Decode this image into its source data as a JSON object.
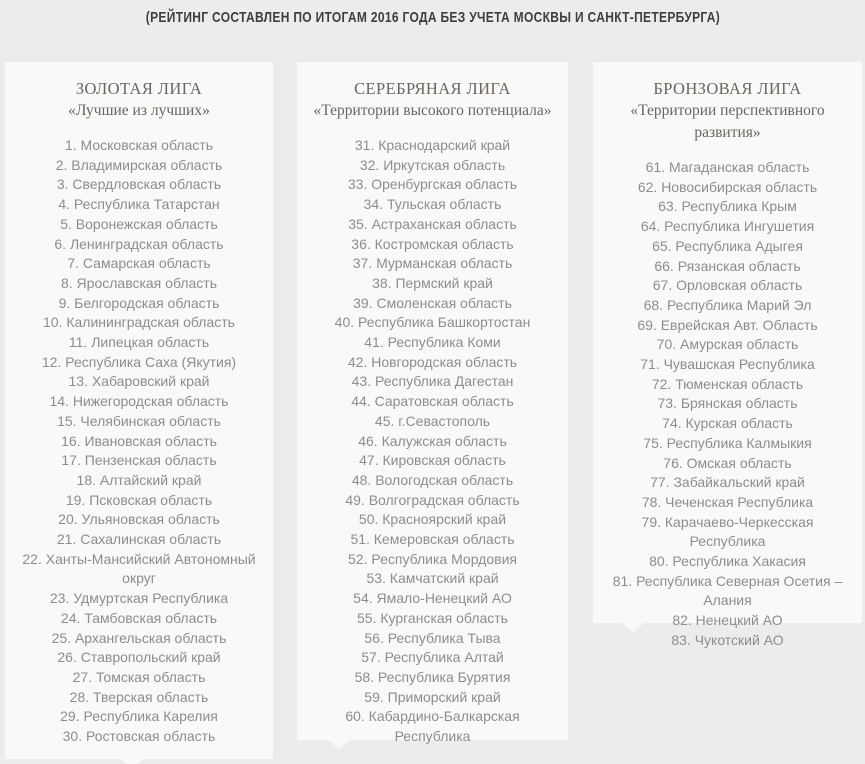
{
  "header": {
    "note": "(РЕЙТИНГ СОСТАВЛЕН ПО ИТОГАМ 2016 ГОДА БЕЗ УЧЕТА МОСКВЫ И САНКТ-ПЕТЕРБУРГА)"
  },
  "colors": {
    "page_background": "#ececec",
    "card_background": "#f9f9f9",
    "header_text": "#3e3e3e",
    "league_title_text": "#6b655e",
    "item_text": "#8d8d8d"
  },
  "leagues": [
    {
      "id": "gold",
      "title": "ЗОЛОТАЯ ЛИГА",
      "subtitle": "«Лучшие из лучших»",
      "items": [
        {
          "rank": 1,
          "name": "Московская область"
        },
        {
          "rank": 2,
          "name": "Владимирская область"
        },
        {
          "rank": 3,
          "name": "Свердловская область"
        },
        {
          "rank": 4,
          "name": "Республика Татарстан"
        },
        {
          "rank": 5,
          "name": "Воронежская область"
        },
        {
          "rank": 6,
          "name": "Ленинградская область"
        },
        {
          "rank": 7,
          "name": "Самарская область"
        },
        {
          "rank": 8,
          "name": "Ярославская область"
        },
        {
          "rank": 9,
          "name": "Белгородская область"
        },
        {
          "rank": 10,
          "name": "Калининградская область"
        },
        {
          "rank": 11,
          "name": "Липецкая область"
        },
        {
          "rank": 12,
          "name": "Республика Саха (Якутия)"
        },
        {
          "rank": 13,
          "name": "Хабаровский край"
        },
        {
          "rank": 14,
          "name": "Нижегородская область"
        },
        {
          "rank": 15,
          "name": "Челябинская область"
        },
        {
          "rank": 16,
          "name": "Ивановская область"
        },
        {
          "rank": 17,
          "name": "Пензенская область"
        },
        {
          "rank": 18,
          "name": "Алтайский край"
        },
        {
          "rank": 19,
          "name": "Псковская область"
        },
        {
          "rank": 20,
          "name": "Ульяновская область"
        },
        {
          "rank": 21,
          "name": "Сахалинская область"
        },
        {
          "rank": 22,
          "name": "Ханты-Мансийский Автономный округ"
        },
        {
          "rank": 23,
          "name": "Удмуртская Республика"
        },
        {
          "rank": 24,
          "name": "Тамбовская область"
        },
        {
          "rank": 25,
          "name": "Архангельская область"
        },
        {
          "rank": 26,
          "name": "Ставропольский край"
        },
        {
          "rank": 27,
          "name": "Томская область"
        },
        {
          "rank": 28,
          "name": "Тверская область"
        },
        {
          "rank": 29,
          "name": "Республика Карелия"
        },
        {
          "rank": 30,
          "name": "Ростовская область"
        }
      ]
    },
    {
      "id": "silver",
      "title": "СЕРЕБРЯНАЯ ЛИГА",
      "subtitle": "«Территории высокого потенциала»",
      "items": [
        {
          "rank": 31,
          "name": "Краснодарский край"
        },
        {
          "rank": 32,
          "name": "Иркутская область"
        },
        {
          "rank": 33,
          "name": "Оренбургская область"
        },
        {
          "rank": 34,
          "name": "Тульская область"
        },
        {
          "rank": 35,
          "name": "Астраханская область"
        },
        {
          "rank": 36,
          "name": "Костромская область"
        },
        {
          "rank": 37,
          "name": "Мурманская область"
        },
        {
          "rank": 38,
          "name": "Пермский край"
        },
        {
          "rank": 39,
          "name": "Смоленская область"
        },
        {
          "rank": 40,
          "name": "Республика Башкортостан"
        },
        {
          "rank": 41,
          "name": "Республика Коми"
        },
        {
          "rank": 42,
          "name": "Новгородская область"
        },
        {
          "rank": 43,
          "name": "Республика Дагестан"
        },
        {
          "rank": 44,
          "name": "Саратовская область"
        },
        {
          "rank": 45,
          "name": "г.Севастополь"
        },
        {
          "rank": 46,
          "name": "Калужская область"
        },
        {
          "rank": 47,
          "name": "Кировская область"
        },
        {
          "rank": 48,
          "name": "Вологодская область"
        },
        {
          "rank": 49,
          "name": "Волгоградская область"
        },
        {
          "rank": 50,
          "name": "Красноярский край"
        },
        {
          "rank": 51,
          "name": "Кемеровская область"
        },
        {
          "rank": 52,
          "name": "Республика Мордовия"
        },
        {
          "rank": 53,
          "name": "Камчатский край"
        },
        {
          "rank": 54,
          "name": "Ямало-Ненецкий АО"
        },
        {
          "rank": 55,
          "name": "Курганская область"
        },
        {
          "rank": 56,
          "name": "Республика Тыва"
        },
        {
          "rank": 57,
          "name": "Республика Алтай"
        },
        {
          "rank": 58,
          "name": "Республика Бурятия"
        },
        {
          "rank": 59,
          "name": "Приморский край"
        },
        {
          "rank": 60,
          "name": "Кабардино-Балкарская Республика"
        }
      ]
    },
    {
      "id": "bronze",
      "title": "БРОНЗОВАЯ ЛИГА",
      "subtitle": "«Территории перспективного развития»",
      "items": [
        {
          "rank": 61,
          "name": "Магаданская область"
        },
        {
          "rank": 62,
          "name": "Новосибирская область"
        },
        {
          "rank": 63,
          "name": "Республика Крым"
        },
        {
          "rank": 64,
          "name": "Республика Ингушетия"
        },
        {
          "rank": 65,
          "name": "Республика Адыгея"
        },
        {
          "rank": 66,
          "name": "Рязанская область"
        },
        {
          "rank": 67,
          "name": "Орловская область"
        },
        {
          "rank": 68,
          "name": "Республика Марий Эл"
        },
        {
          "rank": 69,
          "name": "Еврейская Авт. Область"
        },
        {
          "rank": 70,
          "name": "Амурская область"
        },
        {
          "rank": 71,
          "name": "Чувашская Республика"
        },
        {
          "rank": 72,
          "name": "Тюменская область"
        },
        {
          "rank": 73,
          "name": "Брянская область"
        },
        {
          "rank": 74,
          "name": "Курская область"
        },
        {
          "rank": 75,
          "name": "Республика Калмыкия"
        },
        {
          "rank": 76,
          "name": "Омская область"
        },
        {
          "rank": 77,
          "name": "Забайкальский край"
        },
        {
          "rank": 78,
          "name": "Чеченская Республика"
        },
        {
          "rank": 79,
          "name": "Карачаево-Черкесская Республика"
        },
        {
          "rank": 80,
          "name": "Республика Хакасия"
        },
        {
          "rank": 81,
          "name": "Республика Северная Осетия – Алания"
        },
        {
          "rank": 82,
          "name": "Ненецкий АО"
        },
        {
          "rank": 83,
          "name": "Чукотский АО"
        }
      ]
    }
  ]
}
